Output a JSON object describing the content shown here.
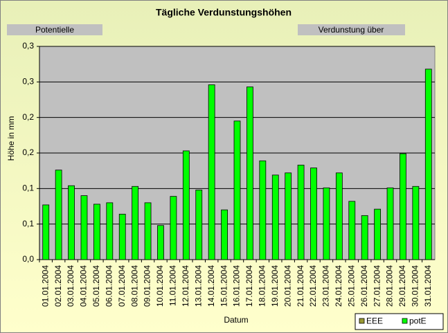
{
  "chart_data": {
    "type": "bar",
    "title": "Tägliche Verdunstungshöhen",
    "annotations": [
      "Potentielle",
      "Verdunstung über"
    ],
    "ylabel": "Höhe in mm",
    "xlabel": "Datum",
    "categories": [
      "01.01.2004",
      "02.01.2004",
      "03.01.2004",
      "04.01.2004",
      "05.01.2004",
      "06.01.2004",
      "07.01.2004",
      "08.01.2004",
      "09.01.2004",
      "10.01.2004",
      "11.01.2004",
      "12.01.2004",
      "13.01.2004",
      "14.01.2004",
      "15.01.2004",
      "16.01.2004",
      "17.01.2004",
      "18.01.2004",
      "19.01.2004",
      "20.01.2004",
      "21.01.2004",
      "22.01.2004",
      "23.01.2004",
      "24.01.2004",
      "25.01.2004",
      "26.01.2004",
      "27.01.2004",
      "28.01.2004",
      "29.01.2004",
      "30.01.2004",
      "31.01.2004"
    ],
    "series": [
      {
        "name": "EEE",
        "color": "#999933",
        "values": [
          null,
          null,
          null,
          null,
          null,
          null,
          null,
          null,
          null,
          null,
          null,
          null,
          null,
          null,
          null,
          null,
          null,
          null,
          null,
          null,
          null,
          null,
          null,
          null,
          null,
          null,
          null,
          null,
          null,
          null,
          null
        ]
      },
      {
        "name": "potE",
        "color": "#00ff00",
        "values": [
          0.077,
          0.126,
          0.104,
          0.09,
          0.078,
          0.08,
          0.064,
          0.103,
          0.08,
          0.048,
          0.089,
          0.153,
          0.098,
          0.246,
          0.07,
          0.195,
          0.243,
          0.139,
          0.119,
          0.122,
          0.133,
          0.129,
          0.101,
          0.122,
          0.082,
          0.062,
          0.071,
          0.101,
          0.149,
          0.103,
          0.268
        ]
      }
    ],
    "ylim": [
      0,
      0.3
    ],
    "yticks": [
      {
        "value": 0,
        "label": "0,0"
      },
      {
        "value": 0.05,
        "label": "0,1"
      },
      {
        "value": 0.1,
        "label": "0,1"
      },
      {
        "value": 0.15,
        "label": "0,2"
      },
      {
        "value": 0.2,
        "label": "0,2"
      },
      {
        "value": 0.25,
        "label": "0,3"
      },
      {
        "value": 0.3,
        "label": "0,3"
      }
    ],
    "grid": true,
    "legend": "bottom-right"
  }
}
